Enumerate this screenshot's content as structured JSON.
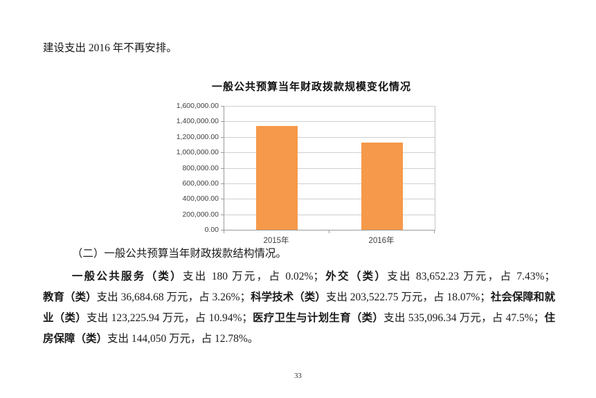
{
  "page": {
    "intro_text": "建设支出 2016 年不再安排。",
    "section_heading": "（二）一般公共预算当年财政拨款结构情况。",
    "page_number": "33"
  },
  "chart_data": {
    "type": "bar",
    "title": "一般公共预算当年财政拨款规模变化情况",
    "categories": [
      "2015年",
      "2016年"
    ],
    "values": [
      1340000,
      1126411.94
    ],
    "unit": "万元",
    "ylim": [
      0,
      1600000
    ],
    "ytick_interval": 200000,
    "ytick_labels": [
      "1,600,000.00",
      "1,400,000.00",
      "1,200,000.00",
      "1,000,000.00",
      "800,000.00",
      "600,000.00",
      "400,000.00",
      "200,000.00",
      "0.00"
    ],
    "grid": true,
    "legend_position": "none",
    "bar_color": "#F6994A"
  },
  "paragraph": {
    "segments": [
      {
        "text": "一般公共服务（类）",
        "bold": true
      },
      {
        "text": "支出 180 万元，占 0.02%；",
        "bold": false
      },
      {
        "text": "外交（类）",
        "bold": true
      },
      {
        "text": "支出 83,652.23 万元，占 7.43%；",
        "bold": false
      },
      {
        "text": "教育（类）",
        "bold": true
      },
      {
        "text": "支出 36,684.68 万元，占 3.26%；",
        "bold": false
      },
      {
        "text": "科学技术（类）",
        "bold": true
      },
      {
        "text": "支出 203,522.75 万元，占 18.07%；",
        "bold": false
      },
      {
        "text": "社会保障和就业（类）",
        "bold": true
      },
      {
        "text": "支出 123,225.94 万元，占 10.94%；",
        "bold": false
      },
      {
        "text": "医疗卫生与计划生育（类）",
        "bold": true
      },
      {
        "text": "支出 535,096.34 万元，占 47.5%；",
        "bold": false
      },
      {
        "text": "住房保障（类）",
        "bold": true
      },
      {
        "text": "支出 144,050 万元，占 12.78%。",
        "bold": false
      }
    ]
  }
}
